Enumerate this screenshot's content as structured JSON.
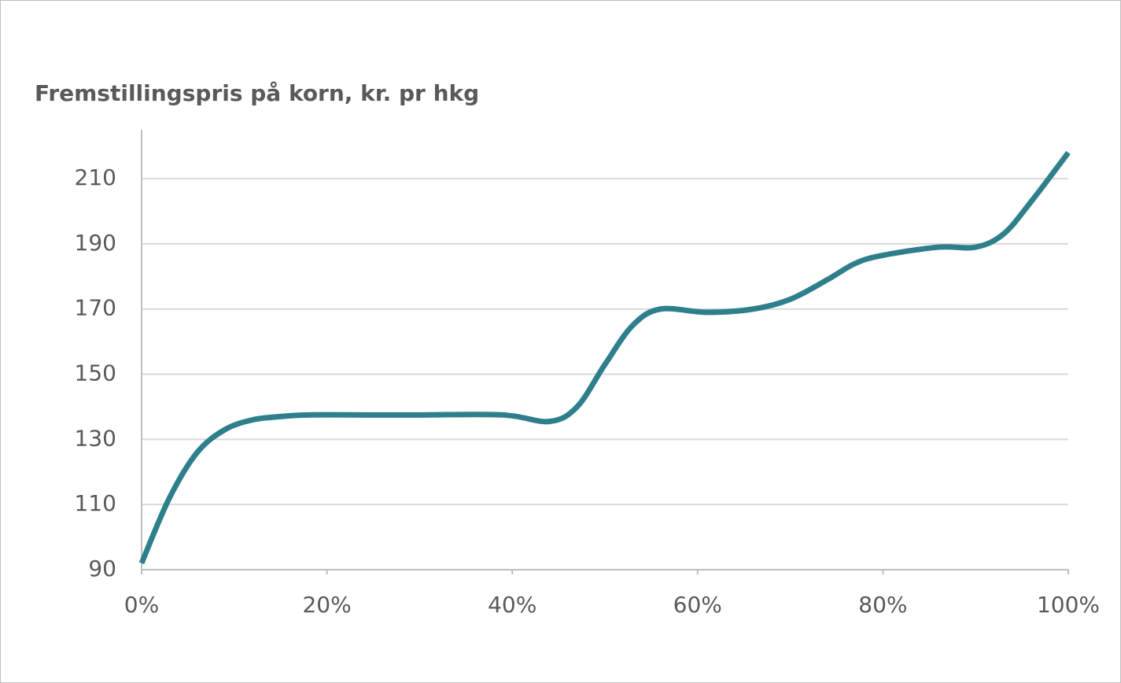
{
  "chart_data": {
    "type": "line",
    "title": "Fremstillingspris på korn, kr. pr hkg",
    "x": [
      0,
      3,
      6,
      9,
      12,
      15,
      18,
      25,
      30,
      39,
      44,
      47,
      50,
      53,
      56,
      61,
      66,
      70,
      74,
      77,
      80,
      86,
      90,
      93,
      96,
      100
    ],
    "series": [
      {
        "name": "Fremstillingspris",
        "color": "#2e7f8c",
        "values": [
          92,
          112,
          126,
          133,
          136,
          137,
          137.5,
          137.5,
          137.5,
          137.5,
          135.5,
          140,
          153,
          165,
          170,
          169,
          170,
          173,
          179,
          184,
          186.5,
          189,
          189,
          193,
          203,
          218
        ]
      }
    ],
    "xlim": [
      0,
      100
    ],
    "xticks": [
      {
        "value": 0,
        "label": "0%"
      },
      {
        "value": 20,
        "label": "20%"
      },
      {
        "value": 40,
        "label": "40%"
      },
      {
        "value": 60,
        "label": "60%"
      },
      {
        "value": 80,
        "label": "80%"
      },
      {
        "value": 100,
        "label": "100%"
      }
    ],
    "ylim": [
      90,
      225
    ],
    "yticks": [
      90,
      110,
      130,
      150,
      170,
      190,
      210
    ],
    "grid": true
  }
}
